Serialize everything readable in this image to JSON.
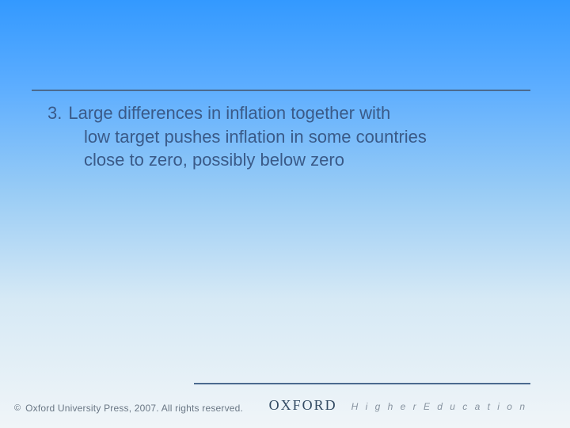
{
  "slide": {
    "background_gradient": [
      "#3399ff",
      "#5cadff",
      "#99ccf5",
      "#d6e9f5",
      "#f0f5f8"
    ],
    "rule_color": "#4b6a8f",
    "text_color": "#3a5a88",
    "body_fontsize": 22
  },
  "bullet": {
    "number": "3.",
    "line1": "Large differences in inflation together with",
    "line2": "low target pushes inflation in some countries",
    "line3": "close to zero, possibly below zero"
  },
  "footer": {
    "copyright_symbol": "©",
    "press_text": "Oxford University Press, 2007. All rights reserved.",
    "brand_main": "OXFORD",
    "brand_sub": "H i g h e r   E d u c a t i o n",
    "footer_color": "#6a7785",
    "brand_main_color": "#324a63",
    "brand_sub_color": "#8793a0"
  }
}
